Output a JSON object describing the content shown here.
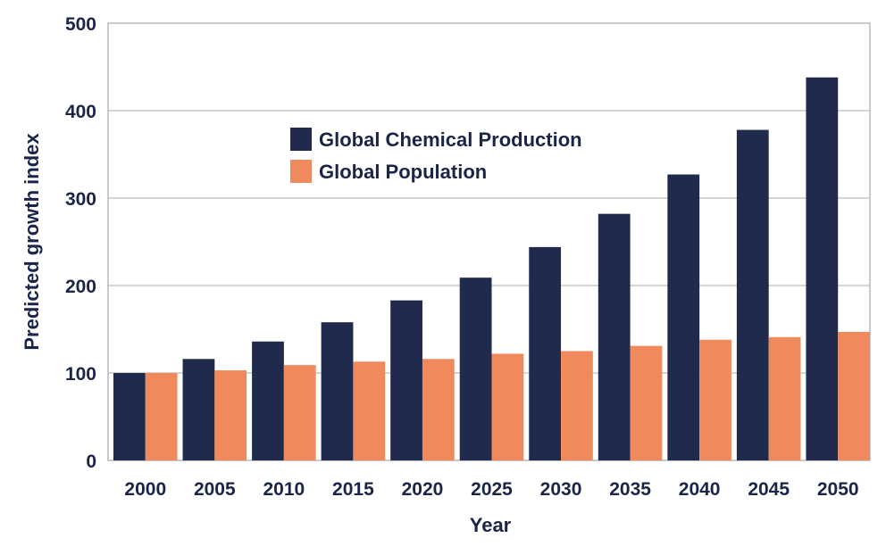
{
  "chart_data": {
    "type": "bar",
    "xlabel": "Year",
    "ylabel": "Predicted growth index",
    "categories": [
      "2000",
      "2005",
      "2010",
      "2015",
      "2020",
      "2025",
      "2030",
      "2035",
      "2040",
      "2045",
      "2050"
    ],
    "series": [
      {
        "name": "Global Chemical Production",
        "color": "#1f2a4d",
        "values": [
          100,
          116,
          136,
          158,
          183,
          209,
          244,
          282,
          327,
          378,
          438
        ]
      },
      {
        "name": "Global Population",
        "color": "#f08a5d",
        "values": [
          100,
          103,
          109,
          113,
          116,
          122,
          125,
          131,
          138,
          141,
          147
        ]
      }
    ],
    "ylim": [
      0,
      500
    ],
    "yticks": [
      0,
      100,
      200,
      300,
      400,
      500
    ],
    "grid": true,
    "legend_position": "top-center"
  }
}
